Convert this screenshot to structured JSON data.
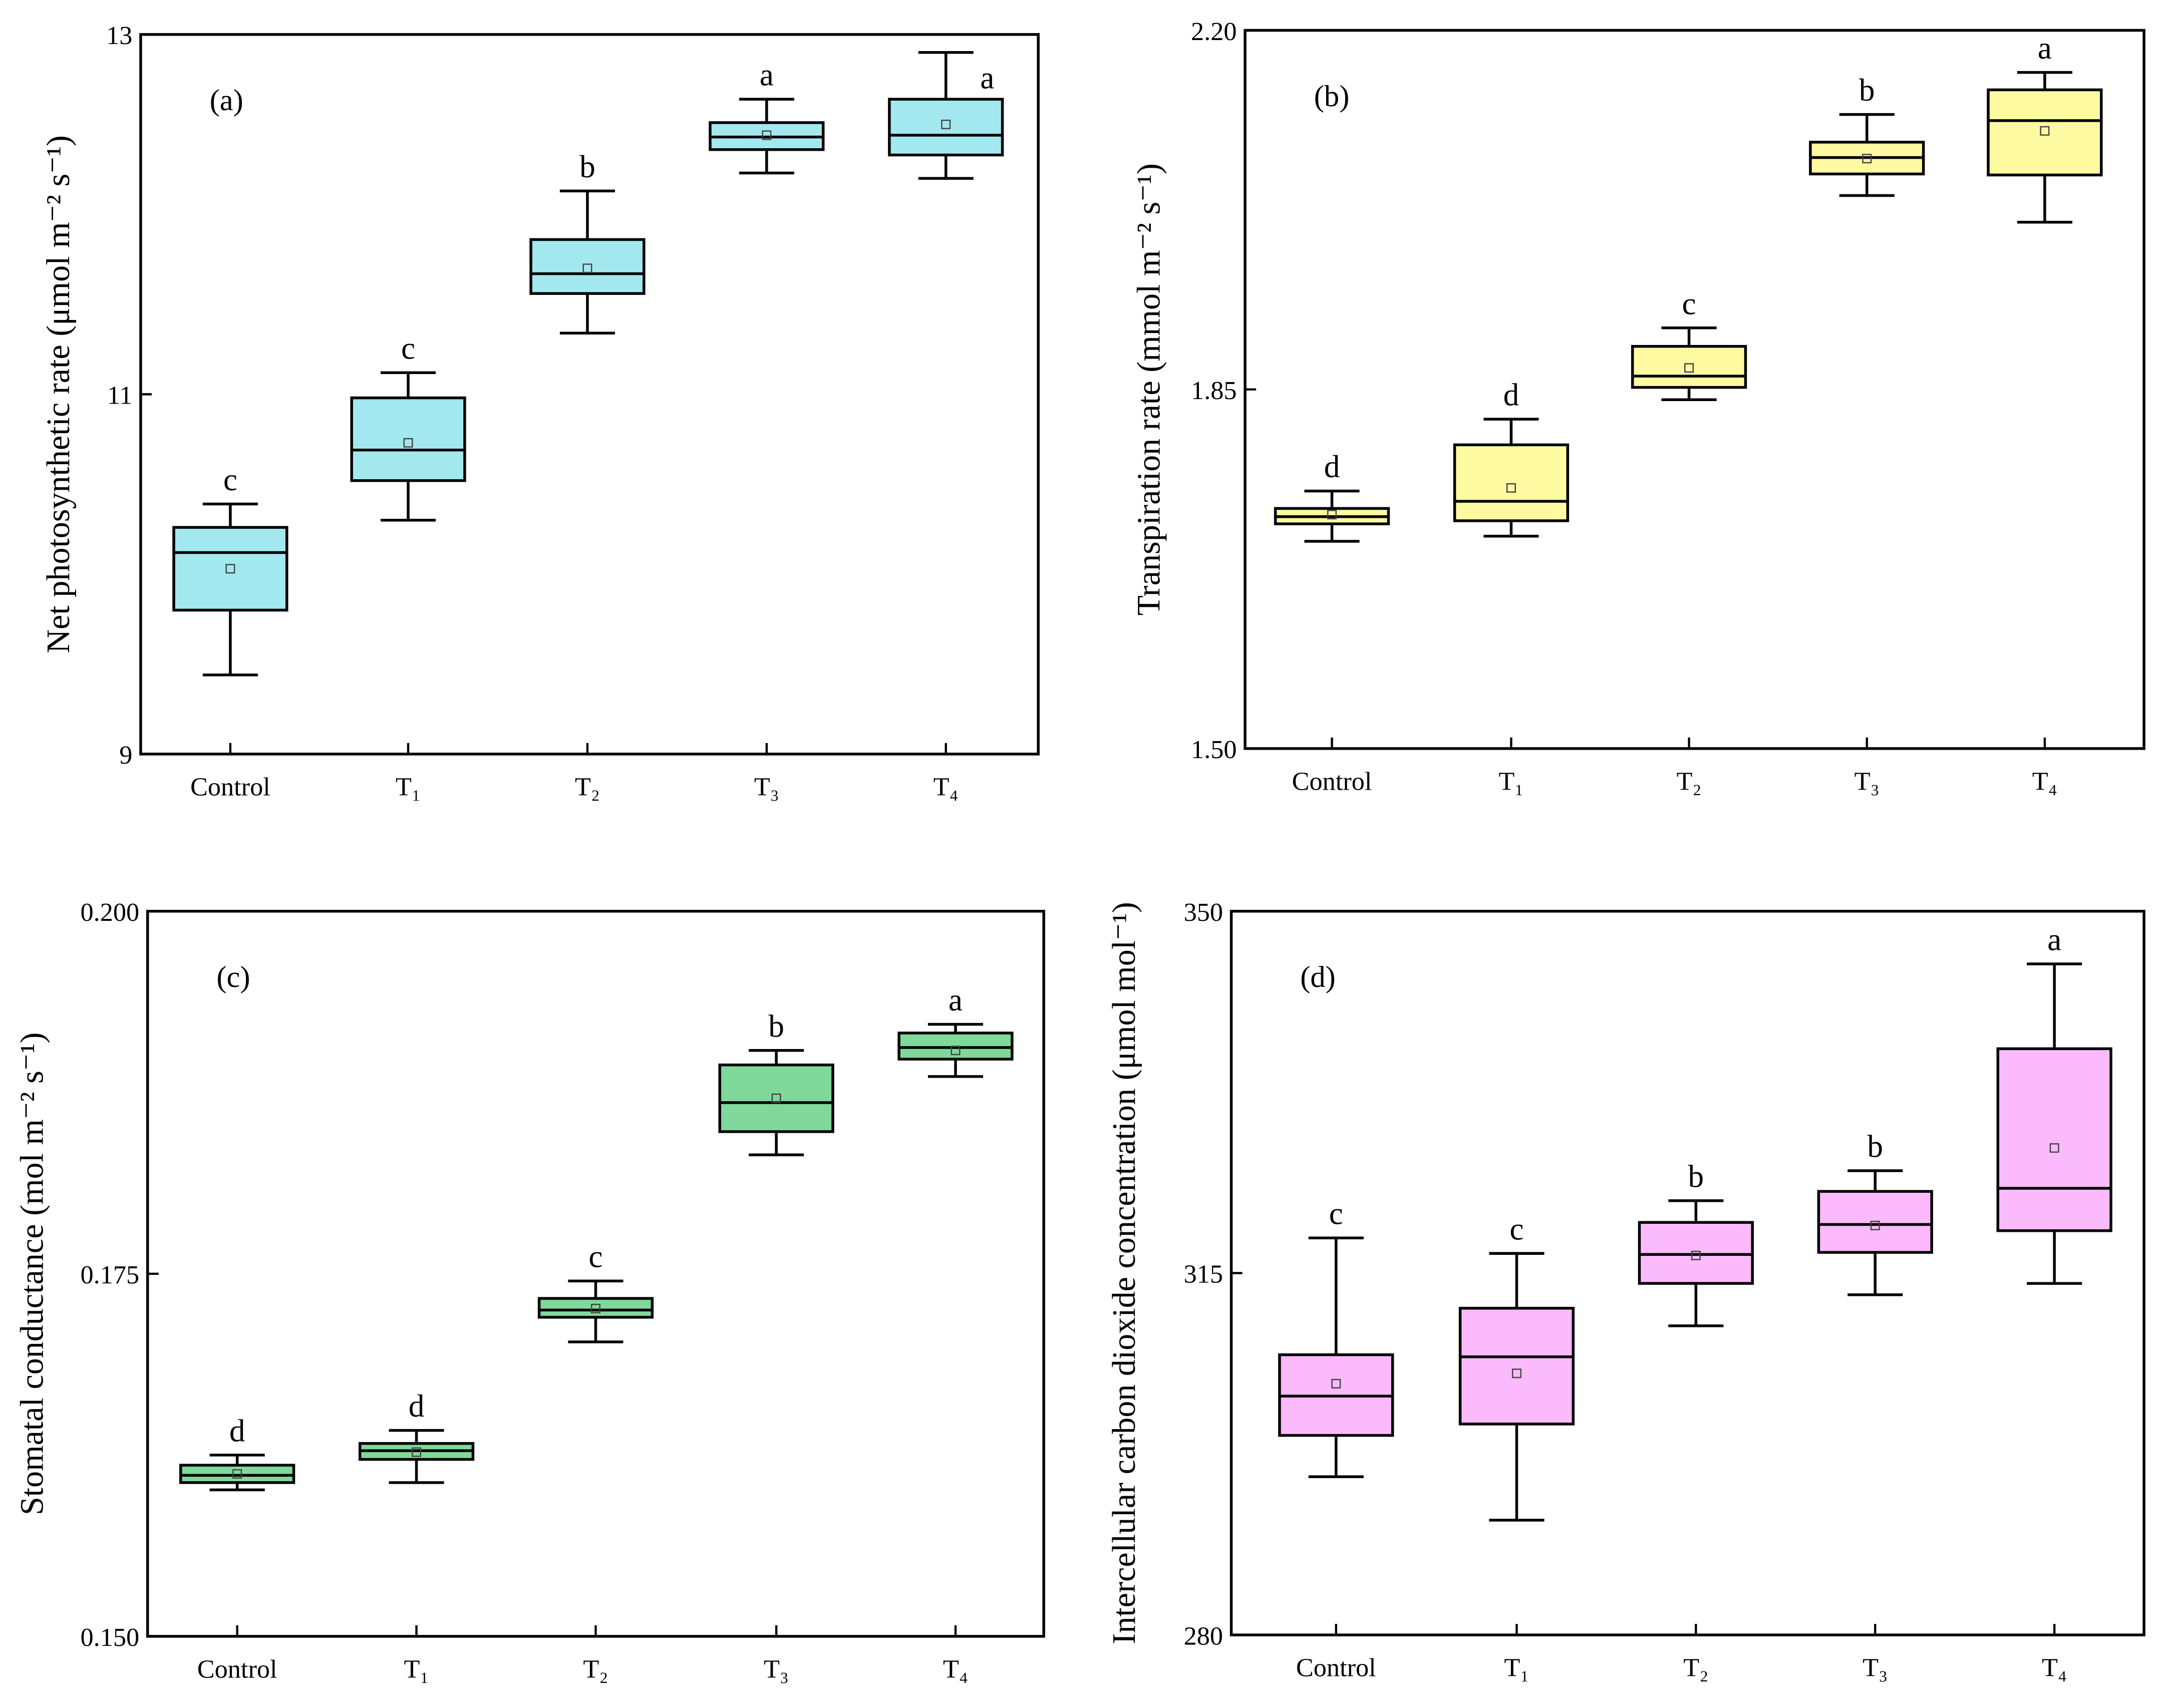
{
  "chart_data": [
    {
      "type": "box",
      "panel_label": "(a)",
      "ylabel": "Net photosynthetic rate (μmol m⁻² s⁻¹)",
      "ylim": [
        9,
        13
      ],
      "yticks": [
        "9",
        "11",
        "13"
      ],
      "ytick_values": [
        9,
        11,
        13
      ],
      "categories": [
        "Control",
        "T₁",
        "T₂",
        "T₃",
        "T₄"
      ],
      "color": "#a3e8ee",
      "boxes": [
        {
          "min": 9.44,
          "q1": 9.8,
          "median": 10.12,
          "mean": 10.03,
          "q3": 10.26,
          "max": 10.39,
          "letter": "c"
        },
        {
          "min": 10.3,
          "q1": 10.52,
          "median": 10.69,
          "mean": 10.73,
          "q3": 10.98,
          "max": 11.12,
          "letter": "c"
        },
        {
          "min": 11.34,
          "q1": 11.56,
          "median": 11.67,
          "mean": 11.7,
          "q3": 11.86,
          "max": 12.13,
          "letter": "b"
        },
        {
          "min": 12.23,
          "q1": 12.36,
          "median": 12.43,
          "mean": 12.44,
          "q3": 12.51,
          "max": 12.64,
          "letter": "a"
        },
        {
          "min": 12.2,
          "q1": 12.33,
          "median": 12.44,
          "mean": 12.5,
          "q3": 12.64,
          "max": 12.9,
          "letter": "a"
        }
      ]
    },
    {
      "type": "box",
      "panel_label": "(b)",
      "ylabel": "Transpiration rate (mmol m⁻² s⁻¹)",
      "ylim": [
        1.5,
        2.2
      ],
      "yticks": [
        "1.50",
        "1.85",
        "2.20"
      ],
      "ytick_values": [
        1.5,
        1.85,
        2.2
      ],
      "categories": [
        "Control",
        "T₁",
        "T₂",
        "T₃",
        "T₄"
      ],
      "color": "#fdfaa2",
      "boxes": [
        {
          "min": 1.702,
          "q1": 1.719,
          "median": 1.726,
          "mean": 1.728,
          "q3": 1.734,
          "max": 1.751,
          "letter": "d"
        },
        {
          "min": 1.707,
          "q1": 1.722,
          "median": 1.741,
          "mean": 1.754,
          "q3": 1.796,
          "max": 1.821,
          "letter": "d"
        },
        {
          "min": 1.84,
          "q1": 1.852,
          "median": 1.863,
          "mean": 1.871,
          "q3": 1.892,
          "max": 1.91,
          "letter": "c"
        },
        {
          "min": 2.039,
          "q1": 2.06,
          "median": 2.076,
          "mean": 2.075,
          "q3": 2.091,
          "max": 2.118,
          "letter": "b"
        },
        {
          "min": 2.013,
          "q1": 2.059,
          "median": 2.112,
          "mean": 2.102,
          "q3": 2.142,
          "max": 2.159,
          "letter": "a"
        }
      ]
    },
    {
      "type": "box",
      "panel_label": "(c)",
      "ylabel": "Stomatal conductance (mol m⁻² s⁻¹)",
      "ylim": [
        0.15,
        0.2
      ],
      "yticks": [
        "0.150",
        "0.175",
        "0.200"
      ],
      "ytick_values": [
        0.15,
        0.175,
        0.2
      ],
      "categories": [
        "Control",
        "T₁",
        "T₂",
        "T₃",
        "T₄"
      ],
      "color": "#80d89b",
      "boxes": [
        {
          "min": 0.1601,
          "q1": 0.1606,
          "median": 0.1611,
          "mean": 0.1612,
          "q3": 0.1618,
          "max": 0.1625,
          "letter": "d"
        },
        {
          "min": 0.1606,
          "q1": 0.1622,
          "median": 0.1628,
          "mean": 0.1627,
          "q3": 0.1633,
          "max": 0.1642,
          "letter": "d"
        },
        {
          "min": 0.1703,
          "q1": 0.172,
          "median": 0.1725,
          "mean": 0.1726,
          "q3": 0.1733,
          "max": 0.1745,
          "letter": "c"
        },
        {
          "min": 0.1832,
          "q1": 0.1848,
          "median": 0.1868,
          "mean": 0.1871,
          "q3": 0.1894,
          "max": 0.1904,
          "letter": "b"
        },
        {
          "min": 0.1886,
          "q1": 0.1898,
          "median": 0.1906,
          "mean": 0.1904,
          "q3": 0.1916,
          "max": 0.1922,
          "letter": "a"
        }
      ]
    },
    {
      "type": "box",
      "panel_label": "(d)",
      "ylabel": "Intercellular carbon dioxide concentration (μmol mol⁻¹)",
      "ylim": [
        280,
        350
      ],
      "yticks": [
        "280",
        "315",
        "350"
      ],
      "ytick_values": [
        280,
        315,
        350
      ],
      "categories": [
        "Control",
        "T₁",
        "T₂",
        "T₃",
        "T₄"
      ],
      "color": "#fbbafb",
      "boxes": [
        {
          "min": 295.3,
          "q1": 299.3,
          "median": 303.1,
          "mean": 304.3,
          "q3": 307.1,
          "max": 318.4,
          "letter": "c"
        },
        {
          "min": 291.1,
          "q1": 300.4,
          "median": 306.9,
          "mean": 305.3,
          "q3": 311.6,
          "max": 316.9,
          "letter": "c"
        },
        {
          "min": 309.9,
          "q1": 314.0,
          "median": 316.8,
          "mean": 316.7,
          "q3": 319.9,
          "max": 322.0,
          "letter": "b"
        },
        {
          "min": 312.9,
          "q1": 317.0,
          "median": 319.7,
          "mean": 319.6,
          "q3": 322.9,
          "max": 324.9,
          "letter": "b"
        },
        {
          "min": 314.0,
          "q1": 319.1,
          "median": 323.2,
          "mean": 327.1,
          "q3": 336.7,
          "max": 344.9,
          "letter": "a"
        }
      ]
    }
  ]
}
